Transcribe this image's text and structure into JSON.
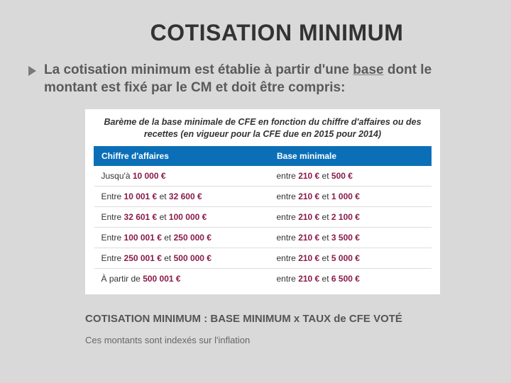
{
  "colors": {
    "page_bg": "#d9d9d9",
    "table_bg": "#ffffff",
    "header_bg": "#0b6fb8",
    "header_text": "#ffffff",
    "highlight": "#8b1a4a",
    "title_text": "#333333",
    "body_text": "#5a5a5a",
    "row_border": "#dddddd",
    "bullet": "#7a7a7a"
  },
  "title": "COTISATION MINIMUM",
  "intro_prefix": "La cotisation minimum est établie à partir d'une ",
  "intro_underlined": "base",
  "intro_suffix": " dont le montant est fixé par le CM et doit être compris:",
  "table": {
    "caption": "Barème de la base minimale de CFE en fonction du chiffre d'affaires ou des recettes (en vigueur pour la CFE due en 2015 pour 2014)",
    "columns": [
      "Chiffre d'affaires",
      "Base minimale"
    ],
    "rows": [
      {
        "ca": {
          "pre": "Jusqu'à ",
          "v1": "10 000 €",
          "mid": "",
          "v2": ""
        },
        "bm": {
          "pre": "entre ",
          "v1": "210 €",
          "mid": " et ",
          "v2": "500 €"
        }
      },
      {
        "ca": {
          "pre": "Entre ",
          "v1": "10 001 €",
          "mid": " et ",
          "v2": "32 600 €"
        },
        "bm": {
          "pre": "entre ",
          "v1": "210 €",
          "mid": " et ",
          "v2": "1 000 €"
        }
      },
      {
        "ca": {
          "pre": "Entre ",
          "v1": "32 601 €",
          "mid": " et ",
          "v2": "100 000 €"
        },
        "bm": {
          "pre": "entre ",
          "v1": "210 €",
          "mid": " et ",
          "v2": "2 100 €"
        }
      },
      {
        "ca": {
          "pre": "Entre ",
          "v1": "100 001 €",
          "mid": " et ",
          "v2": "250 000 €"
        },
        "bm": {
          "pre": "entre ",
          "v1": "210 €",
          "mid": " et ",
          "v2": "3 500 €"
        }
      },
      {
        "ca": {
          "pre": "Entre ",
          "v1": "250 001 €",
          "mid": " et ",
          "v2": "500 000 €"
        },
        "bm": {
          "pre": "entre ",
          "v1": "210 €",
          "mid": " et ",
          "v2": "5 000 €"
        }
      },
      {
        "ca": {
          "pre": "À partir de ",
          "v1": "500 001 €",
          "mid": "",
          "v2": ""
        },
        "bm": {
          "pre": "entre ",
          "v1": "210 €",
          "mid": " et ",
          "v2": "6 500 €"
        }
      }
    ]
  },
  "formula": "COTISATION MINIMUM : BASE MINIMUM x TAUX de CFE VOTÉ",
  "note": "Ces montants sont indexés sur l'inflation"
}
